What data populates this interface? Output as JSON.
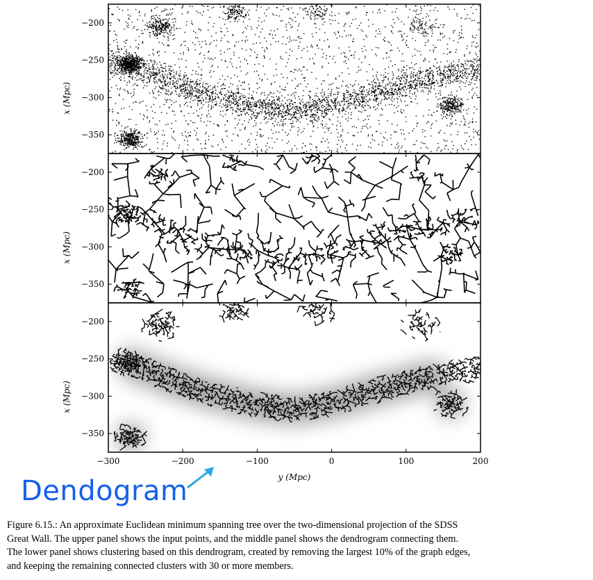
{
  "figure": {
    "panels": [
      {
        "name": "input-points-panel",
        "style": "points"
      },
      {
        "name": "dendrogram-panel",
        "style": "tree"
      },
      {
        "name": "clustering-panel",
        "style": "clusters"
      }
    ],
    "y_ticks": [
      "−200",
      "−250",
      "−300",
      "−350"
    ],
    "x_ticks": [
      "−300",
      "−200",
      "−100",
      "0",
      "100",
      "200"
    ],
    "ylabel": "x (Mpc)",
    "xlabel": "y (Mpc)"
  },
  "chart_data": {
    "type": "scatter",
    "xlabel": "y (Mpc)",
    "ylabel": "x (Mpc)",
    "xlim": [
      -300,
      200
    ],
    "ylim": [
      -375,
      -175
    ],
    "xticks": [
      -300,
      -200,
      -100,
      0,
      100,
      200
    ],
    "yticks": [
      -200,
      -250,
      -300,
      -350
    ],
    "panels": [
      "points",
      "dendrogram",
      "clustering"
    ],
    "wall_ridge": [
      {
        "y": -300,
        "x": -250
      },
      {
        "y": -250,
        "x": -265
      },
      {
        "y": -200,
        "x": -285
      },
      {
        "y": -150,
        "x": -300
      },
      {
        "y": -100,
        "x": -312
      },
      {
        "y": -50,
        "x": -318
      },
      {
        "y": 0,
        "x": -310
      },
      {
        "y": 50,
        "x": -295
      },
      {
        "y": 100,
        "x": -282
      },
      {
        "y": 150,
        "x": -270
      },
      {
        "y": 200,
        "x": -262
      }
    ]
  },
  "annotation": {
    "label": "Dendogram",
    "color": "#1560e8"
  },
  "caption": {
    "lines": [
      "Figure 6.15.:  An approximate Euclidean minimum spanning tree over the two-dimensional projection of the SDSS",
      "Great Wall.  The upper panel shows the input points, and the middle panel shows the dendrogram connecting them.",
      "The lower panel shows clustering based on this dendrogram, created by removing the largest 10% of the graph edges,",
      "and keeping the remaining connected clusters with 30 or more members."
    ]
  }
}
